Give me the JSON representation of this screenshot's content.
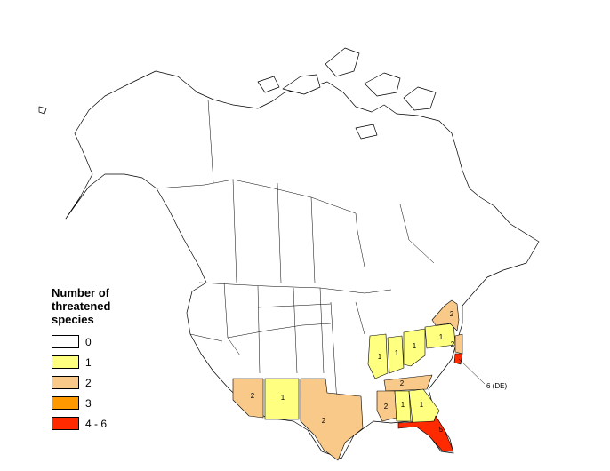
{
  "legend": {
    "title": "Number of threatened species",
    "classes": [
      {
        "label": "0",
        "color": "#ffffff"
      },
      {
        "label": "1",
        "color": "#ffff80"
      },
      {
        "label": "2",
        "color": "#f9c98a"
      },
      {
        "label": "3",
        "color": "#ff9900"
      },
      {
        "label": "4 - 6",
        "color": "#ff2a00"
      }
    ]
  },
  "regions": [
    {
      "name": "Arizona",
      "value": 2,
      "label": "2",
      "color": "#f9c98a"
    },
    {
      "name": "New Mexico",
      "value": 1,
      "label": "1",
      "color": "#ffff80"
    },
    {
      "name": "Texas",
      "value": 2,
      "label": "2",
      "color": "#f9c98a"
    },
    {
      "name": "Illinois",
      "value": 1,
      "label": "1",
      "color": "#ffff80"
    },
    {
      "name": "Indiana",
      "value": 1,
      "label": "1",
      "color": "#ffff80"
    },
    {
      "name": "Ohio",
      "value": 1,
      "label": "1",
      "color": "#ffff80"
    },
    {
      "name": "Pennsylvania",
      "value": 1,
      "label": "1",
      "color": "#ffff80"
    },
    {
      "name": "New York",
      "value": 2,
      "label": "2",
      "color": "#f9c98a"
    },
    {
      "name": "Tennessee",
      "value": 2,
      "label": "2",
      "color": "#f9c98a"
    },
    {
      "name": "Mississippi",
      "value": 2,
      "label": "2",
      "color": "#f9c98a"
    },
    {
      "name": "Alabama",
      "value": 1,
      "label": "1",
      "color": "#ffff80"
    },
    {
      "name": "Georgia",
      "value": 1,
      "label": "1",
      "color": "#ffff80"
    },
    {
      "name": "Florida",
      "value": 5,
      "label": "5",
      "color": "#ff2a00"
    },
    {
      "name": "New Jersey",
      "value": 2,
      "label": "2",
      "color": "#f9c98a"
    },
    {
      "name": "Delaware",
      "value": 6,
      "label": "",
      "color": "#ff2a00"
    }
  ],
  "callout": {
    "label": "6 (DE)"
  }
}
